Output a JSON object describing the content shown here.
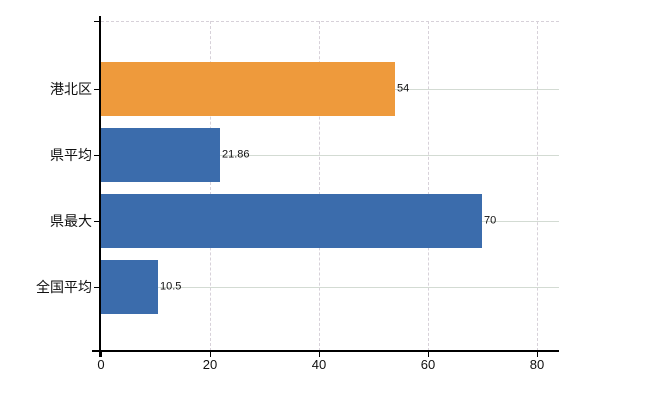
{
  "chart_data": {
    "type": "bar",
    "orientation": "horizontal",
    "title": "",
    "categories": [
      "港北区",
      "県平均",
      "県最大",
      "全国平均"
    ],
    "values": [
      54,
      21.86,
      70,
      10.5
    ],
    "value_labels": [
      "54",
      "21.86",
      "70",
      "10.5"
    ],
    "bar_colors": [
      "#ee9a3c",
      "#3b6cac",
      "#3b6cac",
      "#3b6cac"
    ],
    "series": [
      {
        "name": "港北区",
        "value": 54,
        "highlighted": true
      },
      {
        "name": "県平均",
        "value": 21.86,
        "highlighted": false
      },
      {
        "name": "県最大",
        "value": 70,
        "highlighted": false
      },
      {
        "name": "全国平均",
        "value": 10.5,
        "highlighted": false
      }
    ],
    "x_tick_labels": [
      "0",
      "20",
      "40",
      "60",
      "80"
    ],
    "x_tick_values": [
      0,
      20,
      40,
      60,
      80
    ],
    "xlim": [
      0,
      84
    ],
    "grid": true,
    "legend_position": "none",
    "colors": {
      "highlight_bar": "#ee9a3c",
      "default_bar": "#3b6cac",
      "axis": "#000000",
      "vertical_grid": "#d7d1d9",
      "horizontal_grid": "#d3dbd3",
      "text": "#111111",
      "background": "#ffffff"
    }
  }
}
